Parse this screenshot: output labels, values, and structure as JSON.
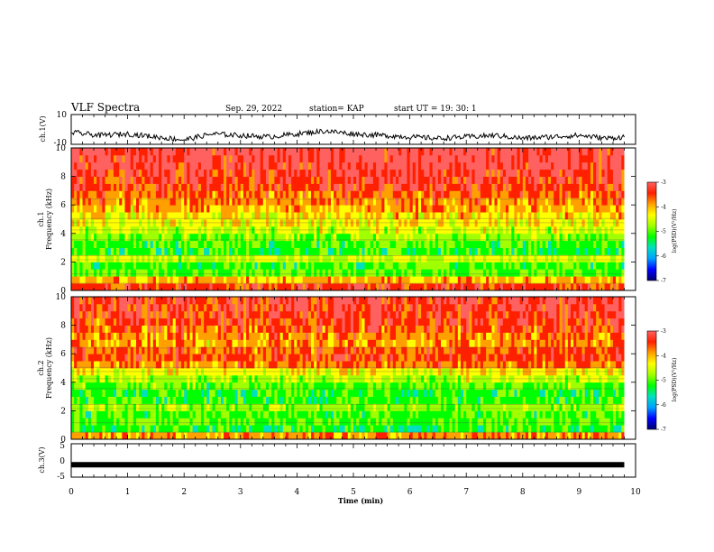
{
  "header": {
    "title": "VLF Spectra",
    "date": "Sep. 29, 2022",
    "station": "station= KAP",
    "start": "start  UT =   19: 30: 1"
  },
  "chart_data": [
    {
      "type": "line",
      "name": "ch1-waveform",
      "ylabel": "ch.1(V)",
      "ylim": [
        -10,
        10
      ],
      "ytick_labels": [
        "10",
        "-10"
      ],
      "xlim": [
        0,
        10
      ],
      "x": [
        0,
        0.5,
        1,
        1.5,
        2,
        2.5,
        3,
        3.5,
        4,
        4.5,
        5,
        5.5,
        6,
        6.5,
        7,
        7.5,
        8,
        8.5,
        9,
        9.5,
        9.8
      ],
      "values": [
        -2,
        -4,
        -3,
        -5,
        -7,
        -3,
        -4,
        -5,
        -3,
        -1,
        -3,
        -4,
        -5,
        -6,
        -5,
        -4,
        -6,
        -5,
        -4,
        -6,
        -5
      ],
      "color": "#000000"
    },
    {
      "type": "heatmap",
      "name": "ch1-spectrogram",
      "ylabel_top": "ch.1",
      "ylabel": "Frequency  (kHz)",
      "ylim": [
        0,
        10
      ],
      "ytick_labels": [
        "0",
        "2",
        "4",
        "6",
        "8",
        "10"
      ],
      "xlim": [
        0,
        10
      ],
      "data_xmax": 9.8,
      "freq_kHz": [
        0.25,
        0.75,
        1.25,
        1.75,
        2.25,
        2.75,
        3.25,
        3.75,
        4.25,
        4.75,
        5.25,
        5.75,
        6.25,
        6.75,
        7.25,
        7.75,
        8.25,
        8.75,
        9.25,
        9.75
      ],
      "log_psd": [
        -3.6,
        -4.1,
        -5.0,
        -5.1,
        -4.6,
        -5.2,
        -5.1,
        -4.9,
        -4.6,
        -4.4,
        -4.3,
        -4.1,
        -3.9,
        -3.8,
        -3.6,
        -3.5,
        -3.4,
        -3.3,
        -3.2,
        -3.2
      ],
      "colorbar": {
        "label": "log(PSD)(V²/Hz)",
        "range": [
          -7,
          -3
        ],
        "tick_labels": [
          "-3",
          "-4",
          "-5",
          "-6",
          "-7"
        ]
      }
    },
    {
      "type": "heatmap",
      "name": "ch2-spectrogram",
      "ylabel_top": "ch.2",
      "ylabel": "Frequency  (kHz)",
      "ylim": [
        0,
        10
      ],
      "ytick_labels": [
        "0",
        "2",
        "4",
        "6",
        "8",
        "10"
      ],
      "xlim": [
        0,
        10
      ],
      "data_xmax": 9.8,
      "freq_kHz": [
        0.25,
        0.75,
        1.25,
        1.75,
        2.25,
        2.75,
        3.25,
        3.75,
        4.25,
        4.75,
        5.25,
        5.75,
        6.25,
        6.75,
        7.25,
        7.75,
        8.25,
        8.75,
        9.25,
        9.75
      ],
      "log_psd": [
        -4.0,
        -5.2,
        -5.0,
        -5.1,
        -4.8,
        -5.1,
        -5.2,
        -5.0,
        -4.7,
        -4.4,
        -3.9,
        -3.6,
        -3.7,
        -4.0,
        -3.9,
        -3.7,
        -3.6,
        -3.5,
        -3.4,
        -3.4
      ],
      "colorbar": {
        "label": "log(PSD)(V²/Hz)",
        "range": [
          -7,
          -3
        ],
        "tick_labels": [
          "-3",
          "-4",
          "-5",
          "-6",
          "-7"
        ]
      }
    },
    {
      "type": "line",
      "name": "ch3-waveform",
      "ylabel": "ch.3(V)",
      "ylim": [
        -5,
        5
      ],
      "ytick_labels": [
        "5",
        "0",
        "-5"
      ],
      "xlim": [
        0,
        10
      ],
      "x": [
        0,
        9.8
      ],
      "values": [
        -1.3,
        -1.3
      ],
      "color": "#000000"
    }
  ],
  "xaxis": {
    "label": "Time  (min)",
    "tick_labels": [
      "0",
      "1",
      "2",
      "3",
      "4",
      "5",
      "6",
      "7",
      "8",
      "9",
      "10"
    ]
  },
  "colors": {
    "scale": [
      "#000070",
      "#0000ff",
      "#00a0ff",
      "#00e0c0",
      "#00ff00",
      "#a0ff00",
      "#ffff00",
      "#ffa000",
      "#ff2000",
      "#ff6060",
      "#ffffff"
    ]
  }
}
